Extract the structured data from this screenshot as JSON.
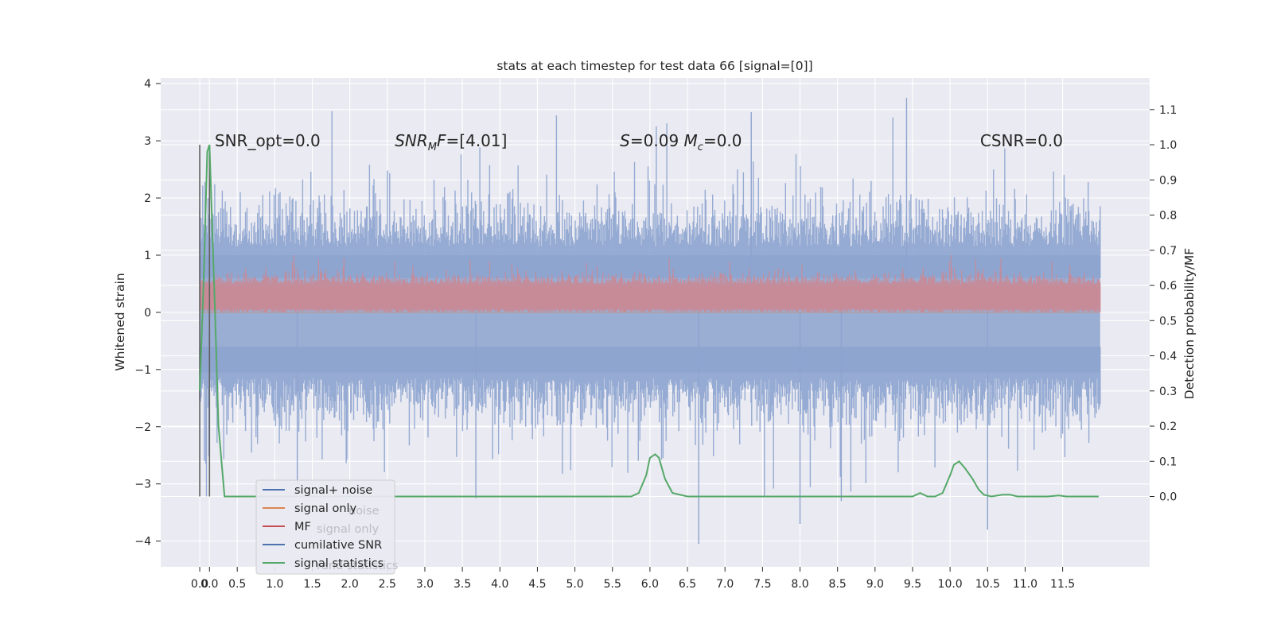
{
  "chart_data": {
    "type": "line",
    "title": "stats at each timestep for test data 66 [signal=[0]]",
    "xlabel": "",
    "ylabel": "Whitened strain",
    "ylabel_right": "Detection probability/MF",
    "xlim": [
      -0.52,
      12.66
    ],
    "ylim": [
      -4.45,
      4.1
    ],
    "ylim_right": [
      -0.2,
      1.19
    ],
    "x_ticks": [
      "0.0",
      "0.0",
      "0.5",
      "1.0",
      "1.5",
      "2.0",
      "2.5",
      "3.0",
      "3.5",
      "4.0",
      "4.5",
      "5.0",
      "5.5",
      "6.0",
      "6.5",
      "7.0",
      "7.5",
      "8.0",
      "8.5",
      "9.0",
      "9.5",
      "10.0",
      "10.5",
      "11.0",
      "11.5"
    ],
    "x_tick_values": [
      0.0,
      0.13,
      0.5,
      1.0,
      1.5,
      2.0,
      2.5,
      3.0,
      3.5,
      4.0,
      4.5,
      5.0,
      5.5,
      6.0,
      6.5,
      7.0,
      7.5,
      8.0,
      8.5,
      9.0,
      9.5,
      10.0,
      10.5,
      11.0,
      11.5
    ],
    "y_ticks": [
      -4,
      -3,
      -2,
      -1,
      0,
      1,
      2,
      3,
      4
    ],
    "y_tick_labels": [
      "−4",
      "−3",
      "−2",
      "−1",
      "0",
      "1",
      "2",
      "3",
      "4"
    ],
    "y_ticks_right": [
      0.0,
      0.1,
      0.2,
      0.3,
      0.4,
      0.5,
      0.6,
      0.7,
      0.8,
      0.9,
      1.0,
      1.1
    ],
    "y_tick_labels_right": [
      "0.0",
      "0.1",
      "0.2",
      "0.3",
      "0.4",
      "0.5",
      "0.6",
      "0.7",
      "0.8",
      "0.9",
      "1.0",
      "1.1"
    ],
    "grid": true,
    "legend_position": "bottom-left",
    "series": [
      {
        "name": "signal+ noise",
        "color": "#4c72b0",
        "axis": "left",
        "x_range": [
          0.0,
          12.0
        ],
        "typical_range": [
          -1.6,
          1.6
        ],
        "extremes": [
          -4.1,
          3.75
        ],
        "rendering": "noise"
      },
      {
        "name": "signal only",
        "color": "#dd8452",
        "axis": "left",
        "x": [
          0.0,
          12.0
        ],
        "y": [
          0.0,
          0.0
        ]
      },
      {
        "name": "MF",
        "color": "#c44e52",
        "axis": "left",
        "x_range": [
          0.0,
          12.0
        ],
        "typical_range": [
          0.05,
          0.55
        ],
        "extremes": [
          0.0,
          1.0
        ],
        "rendering": "noise"
      },
      {
        "name": "cumilative SNR",
        "color": "#4c72b0",
        "axis": "left",
        "x": [],
        "y": []
      },
      {
        "name": "signal statistics",
        "color": "#55a868",
        "axis": "right",
        "x": [
          0.0,
          0.05,
          0.1,
          0.13,
          0.2,
          0.25,
          0.33,
          0.5,
          1.0,
          2.0,
          3.0,
          4.0,
          5.0,
          5.5,
          5.75,
          5.85,
          5.95,
          6.0,
          6.07,
          6.12,
          6.2,
          6.3,
          6.5,
          7.0,
          7.5,
          8.0,
          8.5,
          9.0,
          9.5,
          9.6,
          9.7,
          9.8,
          9.9,
          10.0,
          10.05,
          10.12,
          10.2,
          10.3,
          10.38,
          10.45,
          10.55,
          10.7,
          10.8,
          10.9,
          11.0,
          11.3,
          11.45,
          11.55,
          11.7,
          11.9,
          11.98
        ],
        "y": [
          0.3,
          0.6,
          0.98,
          1.0,
          0.55,
          0.2,
          0.0,
          0.0,
          0.0,
          0.0,
          0.0,
          0.0,
          0.0,
          0.0,
          0.0,
          0.01,
          0.06,
          0.11,
          0.12,
          0.11,
          0.05,
          0.01,
          0.0,
          0.0,
          0.0,
          0.0,
          0.0,
          0.0,
          0.0,
          0.01,
          0.0,
          0.0,
          0.01,
          0.06,
          0.09,
          0.1,
          0.08,
          0.05,
          0.02,
          0.005,
          0.0,
          0.005,
          0.005,
          0.0,
          0.0,
          0.0,
          0.003,
          0.0,
          0.0,
          0.0,
          0.0
        ]
      },
      {
        "name": "",
        "color": "#606060",
        "axis": "right",
        "x": [
          0.0,
          0.0
        ],
        "y": [
          0.0,
          1.0
        ]
      },
      {
        "name": "",
        "color": "#606060",
        "axis": "right",
        "x": [
          0.13,
          0.13
        ],
        "y": [
          0.0,
          1.0
        ]
      }
    ],
    "legend": [
      {
        "label": "signal+ noise",
        "color": "#4c72b0"
      },
      {
        "label": "signal only",
        "color": "#dd8452"
      },
      {
        "label": "MF",
        "color": "#c44e52"
      },
      {
        "label": "cumilative SNR",
        "color": "#4c72b0"
      },
      {
        "label": "signal statistics",
        "color": "#55a868"
      }
    ],
    "legend_shadow_text": [
      "noise",
      "signal only",
      "rand statistics"
    ],
    "annotations": [
      {
        "key": "snr_opt",
        "text": "SNR_opt=0.0",
        "x": 0.2,
        "y": 3.0
      },
      {
        "key": "snr_mf",
        "prefix": "SNR",
        "sub": "M",
        "suffix": "F=[4.01]",
        "x": 2.6,
        "y": 3.0
      },
      {
        "key": "s_mc",
        "s_label": "S",
        "s_value": "=0.09",
        "m_label": "M",
        "m_sub": "c",
        "m_value": "=0.0",
        "x": 5.6,
        "y": 3.0
      },
      {
        "key": "csnr",
        "text": "CSNR=0.0",
        "x": 10.4,
        "y": 3.0
      }
    ]
  }
}
